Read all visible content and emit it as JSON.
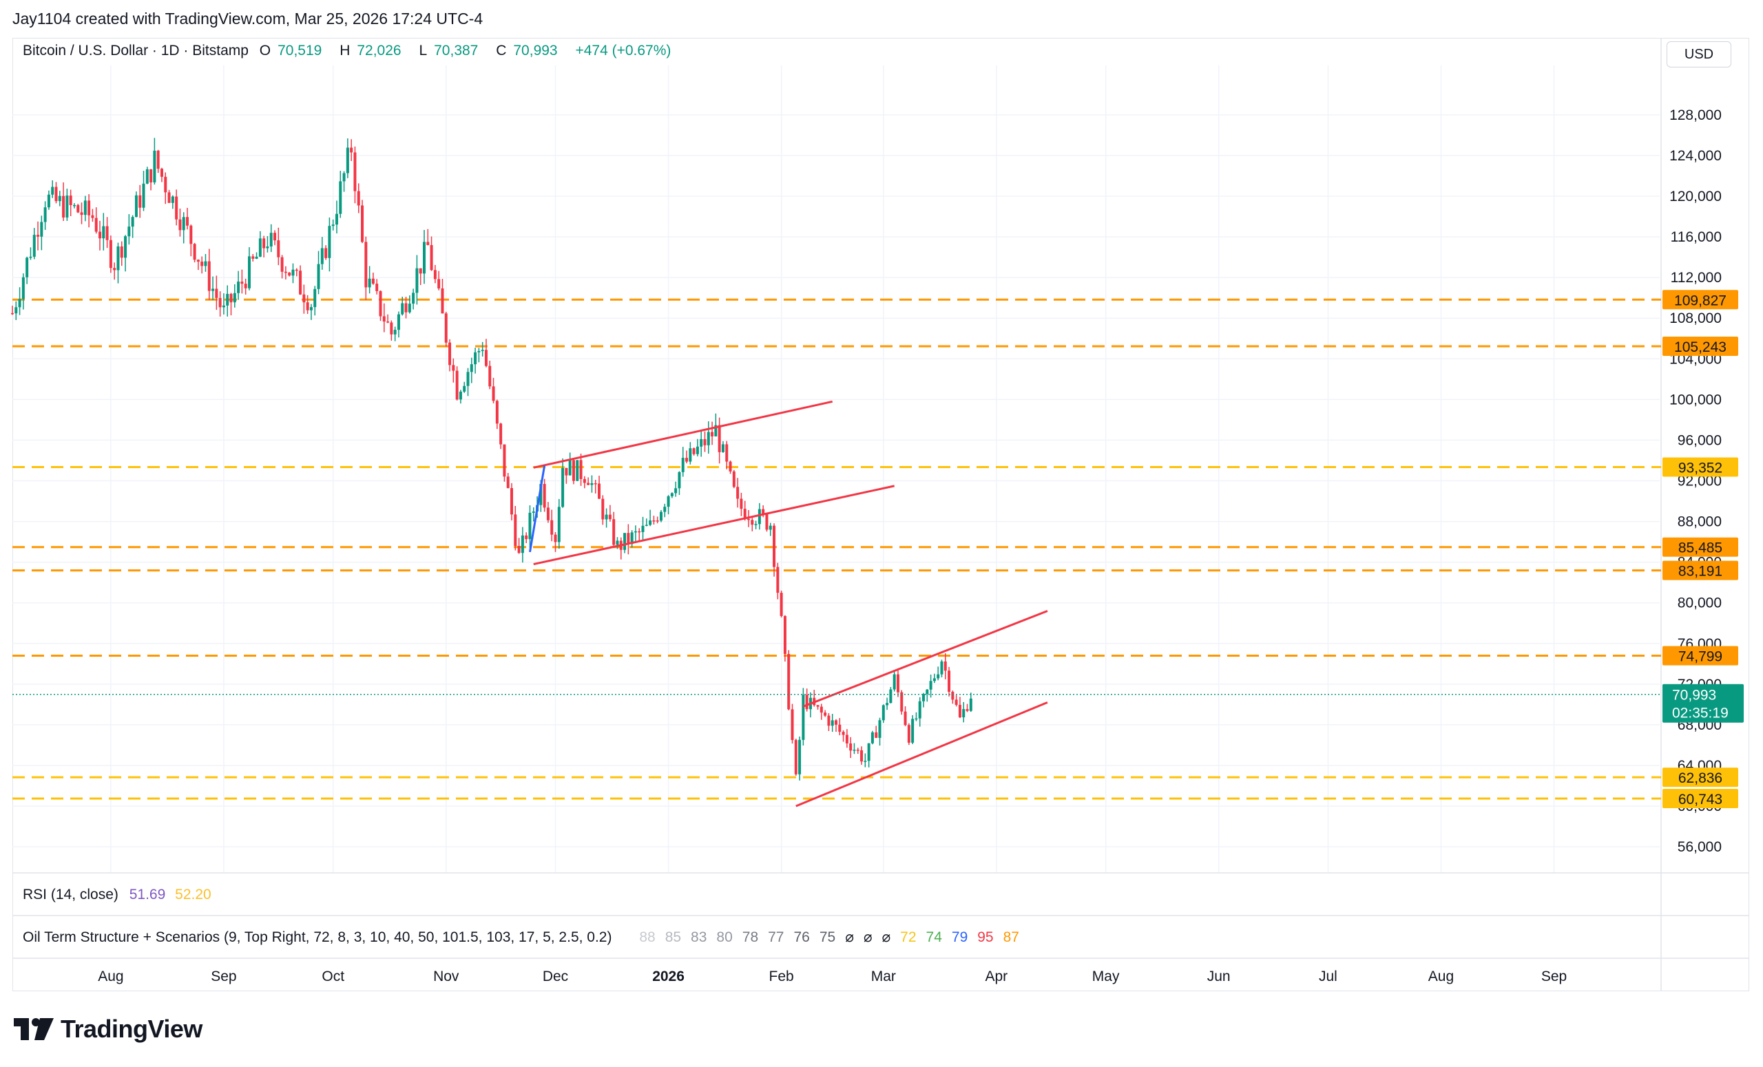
{
  "header": {
    "text": "Jay1104 created with TradingView.com, Mar 25, 2026 17:24 UTC-4"
  },
  "legend": {
    "symbol": "Bitcoin / U.S. Dollar · 1D · Bitstamp",
    "o_label": "O",
    "o_value": "70,519",
    "h_label": "H",
    "h_value": "72,026",
    "l_label": "L",
    "l_value": "70,387",
    "c_label": "C",
    "c_value": "70,993",
    "change": "+474 (+0.67%)"
  },
  "currency_button": "USD",
  "rsi": {
    "label": "RSI (14, close)",
    "value1": "51.69",
    "value2": "52.20"
  },
  "oil_indicator": {
    "label": "Oil Term Structure + Scenarios (9, Top Right, 72, 8, 3, 10, 40, 50, 101.5, 103, 17, 5, 2.5, 0.2)",
    "values": [
      {
        "text": "88",
        "color": "#c8cad0"
      },
      {
        "text": "85",
        "color": "#b6b9c1"
      },
      {
        "text": "83",
        "color": "#9598a1"
      },
      {
        "text": "80",
        "color": "#9598a1"
      },
      {
        "text": "78",
        "color": "#787b86"
      },
      {
        "text": "77",
        "color": "#787b86"
      },
      {
        "text": "76",
        "color": "#5d606b"
      },
      {
        "text": "75",
        "color": "#5d606b"
      },
      {
        "text": "⌀",
        "color": "#131722"
      },
      {
        "text": "⌀",
        "color": "#131722"
      },
      {
        "text": "⌀",
        "color": "#131722"
      },
      {
        "text": "72",
        "color": "#f5c518"
      },
      {
        "text": "74",
        "color": "#4caf50"
      },
      {
        "text": "79",
        "color": "#2962ff"
      },
      {
        "text": "95",
        "color": "#f23645"
      },
      {
        "text": "87",
        "color": "#ff9800"
      }
    ]
  },
  "brand": {
    "name": "TradingView"
  },
  "colors": {
    "up": "#089981",
    "down": "#f23645",
    "orange_level": "#ff9800",
    "yellow_level": "#ffc107",
    "drawing_red": "#f23645",
    "drawing_blue": "#2962ff",
    "last_price": "#089981"
  },
  "chart_data": {
    "type": "candlestick",
    "title": "Bitcoin / U.S. Dollar · 1D · Bitstamp",
    "y_axis": {
      "ticks": [
        56000,
        60000,
        64000,
        68000,
        72000,
        76000,
        80000,
        84000,
        88000,
        92000,
        96000,
        100000,
        104000,
        108000,
        112000,
        116000,
        120000,
        124000,
        128000
      ],
      "ylim": [
        53500,
        130500
      ],
      "position": "right"
    },
    "x_axis": {
      "ticks": [
        {
          "label": "Aug",
          "date": "2025-08-01"
        },
        {
          "label": "Sep",
          "date": "2025-09-01"
        },
        {
          "label": "Oct",
          "date": "2025-10-01"
        },
        {
          "label": "Nov",
          "date": "2025-11-01"
        },
        {
          "label": "Dec",
          "date": "2025-12-01"
        },
        {
          "label": "2026",
          "date": "2026-01-01",
          "bold": true
        },
        {
          "label": "Feb",
          "date": "2026-02-01"
        },
        {
          "label": "Mar",
          "date": "2026-03-01"
        },
        {
          "label": "Apr",
          "date": "2026-04-01"
        },
        {
          "label": "May",
          "date": "2026-05-01"
        },
        {
          "label": "Jun",
          "date": "2026-06-01"
        },
        {
          "label": "Jul",
          "date": "2026-07-01"
        },
        {
          "label": "Aug",
          "date": "2026-08-01"
        },
        {
          "label": "Sep",
          "date": "2026-09-01"
        }
      ],
      "range": [
        "2025-07-05",
        "2026-09-30"
      ]
    },
    "price_path": [
      {
        "date": "2025-07-05",
        "close": 108500
      },
      {
        "date": "2025-07-14",
        "close": 119800
      },
      {
        "date": "2025-07-27",
        "close": 118000
      },
      {
        "date": "2025-08-02",
        "close": 113500
      },
      {
        "date": "2025-08-13",
        "close": 123500
      },
      {
        "date": "2025-08-22",
        "close": 116500
      },
      {
        "date": "2025-09-01",
        "close": 108500
      },
      {
        "date": "2025-09-13",
        "close": 115800
      },
      {
        "date": "2025-09-25",
        "close": 109500
      },
      {
        "date": "2025-10-06",
        "close": 124800
      },
      {
        "date": "2025-10-10",
        "close": 112000
      },
      {
        "date": "2025-10-17",
        "close": 106500
      },
      {
        "date": "2025-10-27",
        "close": 115000
      },
      {
        "date": "2025-11-04",
        "close": 101000
      },
      {
        "date": "2025-11-11",
        "close": 105500
      },
      {
        "date": "2025-11-21",
        "close": 84500
      },
      {
        "date": "2025-11-27",
        "close": 91500
      },
      {
        "date": "2025-12-01",
        "close": 86500
      },
      {
        "date": "2025-12-03",
        "close": 93500
      },
      {
        "date": "2025-12-10",
        "close": 92500
      },
      {
        "date": "2025-12-18",
        "close": 85500
      },
      {
        "date": "2025-12-27",
        "close": 87500
      },
      {
        "date": "2026-01-05",
        "close": 93500
      },
      {
        "date": "2026-01-14",
        "close": 97000
      },
      {
        "date": "2026-01-20",
        "close": 89500
      },
      {
        "date": "2026-01-29",
        "close": 87800
      },
      {
        "date": "2026-02-01",
        "close": 78000
      },
      {
        "date": "2026-02-05",
        "close": 62500
      },
      {
        "date": "2026-02-07",
        "close": 70500
      },
      {
        "date": "2026-02-14",
        "close": 68500
      },
      {
        "date": "2026-02-24",
        "close": 64500
      },
      {
        "date": "2026-03-04",
        "close": 72500
      },
      {
        "date": "2026-03-08",
        "close": 67000
      },
      {
        "date": "2026-03-17",
        "close": 74500
      },
      {
        "date": "2026-03-22",
        "close": 68500
      },
      {
        "date": "2026-03-25",
        "close": 70993
      }
    ],
    "horizontal_levels": [
      {
        "value": 109827,
        "label": "109,827",
        "color": "orange"
      },
      {
        "value": 105243,
        "label": "105,243",
        "color": "orange"
      },
      {
        "value": 93352,
        "label": "93,352",
        "color": "yellow"
      },
      {
        "value": 85485,
        "label": "85,485",
        "color": "orange"
      },
      {
        "value": 83191,
        "label": "83,191",
        "color": "orange"
      },
      {
        "value": 74799,
        "label": "74,799",
        "color": "orange"
      },
      {
        "value": 62836,
        "label": "62,836",
        "color": "yellow"
      },
      {
        "value": 60743,
        "label": "60,743",
        "color": "yellow"
      }
    ],
    "last_price": {
      "value": 70993,
      "label": "70,993",
      "countdown": "02:35:19"
    },
    "trendlines": [
      {
        "from": {
          "date": "2025-11-25",
          "value": 93300
        },
        "to": {
          "date": "2026-02-15",
          "value": 99800
        },
        "color": "red"
      },
      {
        "from": {
          "date": "2025-11-25",
          "value": 83800
        },
        "to": {
          "date": "2026-03-04",
          "value": 91500
        },
        "color": "red"
      },
      {
        "from": {
          "date": "2026-02-07",
          "value": 69800
        },
        "to": {
          "date": "2026-04-15",
          "value": 79200
        },
        "color": "red"
      },
      {
        "from": {
          "date": "2026-02-05",
          "value": 60000
        },
        "to": {
          "date": "2026-04-15",
          "value": 70200
        },
        "color": "red"
      },
      {
        "from": {
          "date": "2025-11-24",
          "value": 85000
        },
        "to": {
          "date": "2025-11-28",
          "value": 93500
        },
        "color": "blue"
      }
    ]
  }
}
